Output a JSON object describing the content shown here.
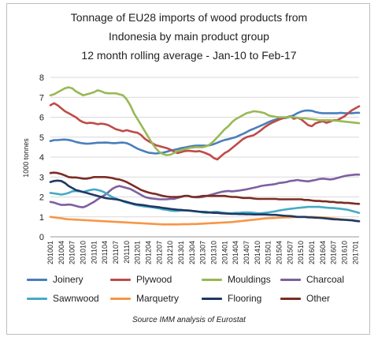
{
  "chart_data": {
    "type": "line",
    "title_lines": [
      "Tonnage of EU28 imports of wood products from",
      "Indonesia by main product group",
      "12 month rolling average - Jan-10 to Feb-17"
    ],
    "ylabel": "1000 tonnes",
    "ylim": [
      0,
      8
    ],
    "yticks": [
      "0",
      "1",
      "2",
      "3",
      "4",
      "5",
      "6",
      "7",
      "8"
    ],
    "grid": true,
    "legend_position": "bottom",
    "x_tick_labels": [
      "201001",
      "201004",
      "201007",
      "201010",
      "201101",
      "201104",
      "201107",
      "201110",
      "201201",
      "201204",
      "201207",
      "201210",
      "201301",
      "201304",
      "201307",
      "201310",
      "201401",
      "201404",
      "201407",
      "201410",
      "201501",
      "201504",
      "201507",
      "201510",
      "201601",
      "201604",
      "201607",
      "201610",
      "201701"
    ],
    "series": [
      {
        "name": "Joinery",
        "color": "#4a7ebb",
        "values": [
          4.8,
          4.85,
          4.85,
          4.87,
          4.88,
          4.86,
          4.82,
          4.76,
          4.72,
          4.69,
          4.67,
          4.68,
          4.7,
          4.72,
          4.72,
          4.73,
          4.72,
          4.7,
          4.7,
          4.72,
          4.73,
          4.7,
          4.62,
          4.52,
          4.42,
          4.35,
          4.28,
          4.22,
          4.2,
          4.18,
          4.2,
          4.22,
          4.27,
          4.32,
          4.36,
          4.4,
          4.45,
          4.48,
          4.52,
          4.55,
          4.57,
          4.58,
          4.58,
          4.57,
          4.6,
          4.65,
          4.72,
          4.8,
          4.86,
          4.9,
          4.95,
          5.0,
          5.08,
          5.16,
          5.25,
          5.35,
          5.42,
          5.5,
          5.58,
          5.66,
          5.75,
          5.82,
          5.88,
          5.93,
          5.95,
          5.97,
          6.02,
          6.1,
          6.2,
          6.28,
          6.33,
          6.34,
          6.32,
          6.26,
          6.22,
          6.2,
          6.2,
          6.2,
          6.2,
          6.2,
          6.22,
          6.2,
          6.2,
          6.2,
          6.22,
          6.22
        ]
      },
      {
        "name": "Plywood",
        "color": "#be4b48",
        "values": [
          6.6,
          6.7,
          6.6,
          6.45,
          6.3,
          6.2,
          6.1,
          6.0,
          5.85,
          5.75,
          5.7,
          5.72,
          5.7,
          5.65,
          5.68,
          5.65,
          5.6,
          5.5,
          5.4,
          5.35,
          5.3,
          5.35,
          5.3,
          5.25,
          5.22,
          5.1,
          4.92,
          4.8,
          4.7,
          4.6,
          4.55,
          4.5,
          4.45,
          4.38,
          4.28,
          4.2,
          4.25,
          4.3,
          4.32,
          4.3,
          4.28,
          4.3,
          4.25,
          4.18,
          4.1,
          3.95,
          3.88,
          4.05,
          4.2,
          4.3,
          4.45,
          4.6,
          4.75,
          4.9,
          5.0,
          5.05,
          5.1,
          5.22,
          5.35,
          5.5,
          5.62,
          5.72,
          5.8,
          5.88,
          5.95,
          6.0,
          6.05,
          5.92,
          5.98,
          5.9,
          5.75,
          5.6,
          5.55,
          5.7,
          5.75,
          5.8,
          5.72,
          5.78,
          5.85,
          5.85,
          5.95,
          6.05,
          6.2,
          6.35,
          6.45,
          6.55
        ]
      },
      {
        "name": "Mouldings",
        "color": "#98b954",
        "values": [
          7.1,
          7.15,
          7.25,
          7.35,
          7.45,
          7.5,
          7.45,
          7.3,
          7.2,
          7.1,
          7.15,
          7.2,
          7.25,
          7.35,
          7.3,
          7.22,
          7.2,
          7.2,
          7.2,
          7.15,
          7.1,
          6.9,
          6.6,
          6.2,
          5.9,
          5.6,
          5.3,
          5.0,
          4.7,
          4.45,
          4.25,
          4.15,
          4.1,
          4.12,
          4.2,
          4.3,
          4.35,
          4.4,
          4.45,
          4.48,
          4.5,
          4.5,
          4.5,
          4.55,
          4.65,
          4.8,
          5.0,
          5.2,
          5.4,
          5.55,
          5.75,
          5.9,
          6.0,
          6.1,
          6.2,
          6.25,
          6.3,
          6.28,
          6.25,
          6.2,
          6.1,
          6.05,
          6.02,
          6.0,
          6.0,
          6.0,
          6.02,
          6.0,
          5.98,
          5.95,
          5.95,
          5.92,
          5.9,
          5.88,
          5.85,
          5.85,
          5.85,
          5.85,
          5.83,
          5.82,
          5.8,
          5.78,
          5.76,
          5.74,
          5.72,
          5.7
        ]
      },
      {
        "name": "Charcoal",
        "color": "#7d60a0",
        "values": [
          1.75,
          1.72,
          1.65,
          1.6,
          1.6,
          1.62,
          1.6,
          1.55,
          1.5,
          1.48,
          1.55,
          1.65,
          1.75,
          1.88,
          2.0,
          2.1,
          2.25,
          2.4,
          2.5,
          2.55,
          2.5,
          2.45,
          2.4,
          2.3,
          2.2,
          2.1,
          2.0,
          1.95,
          1.92,
          1.9,
          1.88,
          1.88,
          1.88,
          1.9,
          1.9,
          1.95,
          2.0,
          2.05,
          2.05,
          2.0,
          1.98,
          1.98,
          2.0,
          2.05,
          2.1,
          2.15,
          2.2,
          2.25,
          2.28,
          2.3,
          2.28,
          2.3,
          2.32,
          2.35,
          2.38,
          2.42,
          2.46,
          2.5,
          2.55,
          2.58,
          2.6,
          2.62,
          2.65,
          2.7,
          2.72,
          2.75,
          2.8,
          2.82,
          2.85,
          2.82,
          2.8,
          2.78,
          2.82,
          2.85,
          2.9,
          2.92,
          2.9,
          2.88,
          2.9,
          2.95,
          3.0,
          3.05,
          3.08,
          3.1,
          3.12,
          3.12
        ]
      },
      {
        "name": "Sawnwood",
        "color": "#46aac5",
        "values": [
          2.2,
          2.18,
          2.15,
          2.12,
          2.15,
          2.2,
          2.28,
          2.3,
          2.28,
          2.25,
          2.3,
          2.35,
          2.38,
          2.35,
          2.3,
          2.22,
          2.1,
          2.0,
          1.92,
          1.85,
          1.78,
          1.72,
          1.68,
          1.62,
          1.58,
          1.55,
          1.52,
          1.5,
          1.48,
          1.45,
          1.42,
          1.38,
          1.35,
          1.32,
          1.3,
          1.3,
          1.32,
          1.33,
          1.32,
          1.3,
          1.28,
          1.25,
          1.22,
          1.2,
          1.22,
          1.25,
          1.25,
          1.22,
          1.2,
          1.18,
          1.18,
          1.2,
          1.2,
          1.22,
          1.22,
          1.22,
          1.2,
          1.18,
          1.18,
          1.2,
          1.22,
          1.25,
          1.28,
          1.32,
          1.35,
          1.38,
          1.4,
          1.42,
          1.45,
          1.46,
          1.48,
          1.5,
          1.5,
          1.5,
          1.5,
          1.48,
          1.46,
          1.45,
          1.44,
          1.42,
          1.4,
          1.38,
          1.35,
          1.3,
          1.25,
          1.2
        ]
      },
      {
        "name": "Marquetry",
        "color": "#f79646",
        "values": [
          1.0,
          0.98,
          0.95,
          0.93,
          0.9,
          0.88,
          0.87,
          0.86,
          0.85,
          0.84,
          0.83,
          0.82,
          0.81,
          0.8,
          0.79,
          0.78,
          0.77,
          0.76,
          0.75,
          0.74,
          0.73,
          0.72,
          0.71,
          0.7,
          0.69,
          0.68,
          0.67,
          0.66,
          0.65,
          0.64,
          0.63,
          0.62,
          0.62,
          0.62,
          0.62,
          0.62,
          0.63,
          0.63,
          0.63,
          0.64,
          0.64,
          0.65,
          0.66,
          0.67,
          0.68,
          0.69,
          0.7,
          0.71,
          0.72,
          0.73,
          0.74,
          0.76,
          0.78,
          0.8,
          0.82,
          0.84,
          0.86,
          0.88,
          0.9,
          0.92,
          0.93,
          0.94,
          0.95,
          0.96,
          0.97,
          0.98,
          0.98,
          0.99,
          1.0,
          1.0,
          1.0,
          1.0,
          1.0,
          0.99,
          0.98,
          0.97,
          0.96,
          0.94,
          0.92,
          0.9,
          0.88,
          0.86,
          0.84,
          0.82,
          0.8,
          0.78
        ]
      },
      {
        "name": "Flooring",
        "color": "#1f3864",
        "values": [
          2.75,
          2.8,
          2.82,
          2.8,
          2.7,
          2.55,
          2.45,
          2.35,
          2.3,
          2.25,
          2.2,
          2.15,
          2.1,
          2.05,
          2.0,
          1.95,
          1.92,
          1.9,
          1.88,
          1.85,
          1.8,
          1.75,
          1.7,
          1.65,
          1.62,
          1.6,
          1.58,
          1.55,
          1.52,
          1.5,
          1.48,
          1.45,
          1.43,
          1.4,
          1.38,
          1.36,
          1.35,
          1.33,
          1.32,
          1.3,
          1.28,
          1.26,
          1.25,
          1.24,
          1.22,
          1.2,
          1.2,
          1.18,
          1.17,
          1.16,
          1.15,
          1.15,
          1.14,
          1.14,
          1.13,
          1.13,
          1.12,
          1.12,
          1.12,
          1.12,
          1.11,
          1.1,
          1.1,
          1.08,
          1.06,
          1.05,
          1.04,
          1.02,
          1.0,
          1.0,
          1.0,
          0.98,
          0.97,
          0.96,
          0.95,
          0.94,
          0.92,
          0.9,
          0.88,
          0.87,
          0.86,
          0.85,
          0.84,
          0.83,
          0.8,
          0.78
        ]
      },
      {
        "name": "Other",
        "color": "#7b2c23",
        "values": [
          3.2,
          3.22,
          3.2,
          3.15,
          3.08,
          3.0,
          2.98,
          2.98,
          2.95,
          2.92,
          2.92,
          2.95,
          3.0,
          3.0,
          3.0,
          3.0,
          2.98,
          2.95,
          2.9,
          2.88,
          2.82,
          2.75,
          2.65,
          2.55,
          2.45,
          2.35,
          2.28,
          2.22,
          2.18,
          2.15,
          2.1,
          2.05,
          2.02,
          2.0,
          2.0,
          2.0,
          2.02,
          2.05,
          2.05,
          2.0,
          2.0,
          2.02,
          2.05,
          2.05,
          2.05,
          2.05,
          2.05,
          2.05,
          2.05,
          2.02,
          2.0,
          2.0,
          1.98,
          1.95,
          1.95,
          1.95,
          1.92,
          1.9,
          1.9,
          1.9,
          1.9,
          1.9,
          1.9,
          1.88,
          1.88,
          1.88,
          1.88,
          1.88,
          1.88,
          1.88,
          1.85,
          1.85,
          1.82,
          1.8,
          1.8,
          1.78,
          1.78,
          1.75,
          1.75,
          1.72,
          1.72,
          1.7,
          1.7,
          1.68,
          1.66,
          1.65
        ]
      }
    ]
  },
  "source": "Source IMM analysis of Eurostat"
}
